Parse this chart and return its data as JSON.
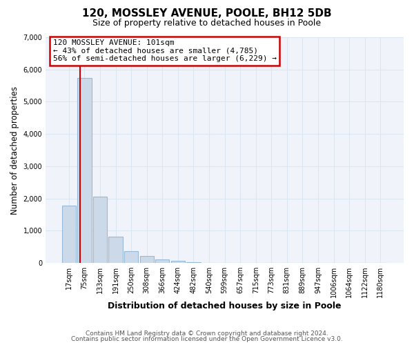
{
  "title": "120, MOSSLEY AVENUE, POOLE, BH12 5DB",
  "subtitle": "Size of property relative to detached houses in Poole",
  "xlabel": "Distribution of detached houses by size in Poole",
  "ylabel": "Number of detached properties",
  "bar_labels": [
    "17sqm",
    "75sqm",
    "133sqm",
    "191sqm",
    "250sqm",
    "308sqm",
    "366sqm",
    "424sqm",
    "482sqm",
    "540sqm",
    "599sqm",
    "657sqm",
    "715sqm",
    "773sqm",
    "831sqm",
    "889sqm",
    "947sqm",
    "1006sqm",
    "1064sqm",
    "1122sqm",
    "1180sqm"
  ],
  "bar_values": [
    1780,
    5730,
    2050,
    810,
    370,
    215,
    110,
    60,
    30,
    10,
    5,
    0,
    0,
    0,
    0,
    0,
    0,
    0,
    0,
    0,
    0
  ],
  "bar_color": "#ccd9e8",
  "bar_edge_color": "#98b8d8",
  "highlight_line_color": "#cc0000",
  "property_line_x": 0.72,
  "ylim": [
    0,
    7000
  ],
  "yticks": [
    0,
    1000,
    2000,
    3000,
    4000,
    5000,
    6000,
    7000
  ],
  "annotation_title": "120 MOSSLEY AVENUE: 101sqm",
  "annotation_line1": "← 43% of detached houses are smaller (4,785)",
  "annotation_line2": "56% of semi-detached houses are larger (6,229) →",
  "annotation_box_color": "#ffffff",
  "annotation_box_edge": "#cc0000",
  "footer1": "Contains HM Land Registry data © Crown copyright and database right 2024.",
  "footer2": "Contains public sector information licensed under the Open Government Licence v3.0.",
  "grid_color": "#dce6f0",
  "background_color": "#ffffff",
  "plot_bg_color": "#f0f4fa"
}
